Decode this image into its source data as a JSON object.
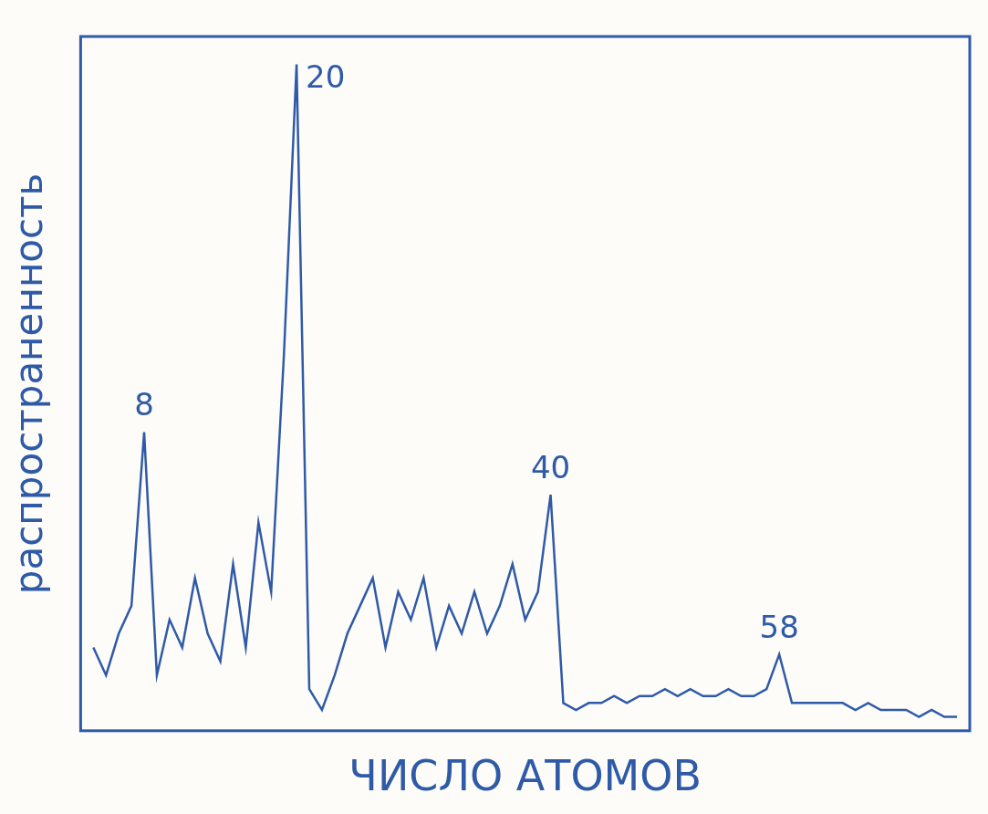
{
  "chart_data": {
    "type": "line",
    "x_label": "ЧИСЛО АТОМОВ",
    "y_label": "распространенность",
    "x": [
      4,
      5,
      6,
      7,
      8,
      9,
      10,
      11,
      12,
      13,
      14,
      15,
      16,
      17,
      18,
      19,
      20,
      21,
      22,
      23,
      24,
      25,
      26,
      27,
      28,
      29,
      30,
      31,
      32,
      33,
      34,
      35,
      36,
      37,
      38,
      39,
      40,
      41,
      42,
      43,
      44,
      45,
      46,
      47,
      48,
      49,
      50,
      51,
      52,
      53,
      54,
      55,
      56,
      57,
      58,
      59,
      60,
      61,
      62,
      63,
      64,
      65,
      66,
      67,
      68,
      69,
      70,
      71,
      72
    ],
    "values": [
      12,
      8,
      14,
      18,
      43,
      8,
      16,
      12,
      22,
      14,
      10,
      24,
      12,
      30,
      20,
      54,
      96,
      6,
      3,
      8,
      14,
      18,
      22,
      12,
      20,
      16,
      22,
      12,
      18,
      14,
      20,
      14,
      18,
      24,
      16,
      20,
      34,
      4,
      3,
      4,
      4,
      5,
      4,
      5,
      5,
      6,
      5,
      6,
      5,
      5,
      6,
      5,
      5,
      6,
      11,
      4,
      4,
      4,
      4,
      4,
      3,
      4,
      3,
      3,
      3,
      2,
      3,
      2,
      2
    ],
    "annotations": [
      {
        "x": 8,
        "label": "8"
      },
      {
        "x": 20,
        "label": "20"
      },
      {
        "x": 40,
        "label": "40"
      },
      {
        "x": 58,
        "label": "58"
      }
    ],
    "xlim": [
      3,
      73
    ],
    "ylim": [
      0,
      100
    ],
    "color": "#2f5aa8",
    "grid": false,
    "tick_labels": false
  }
}
